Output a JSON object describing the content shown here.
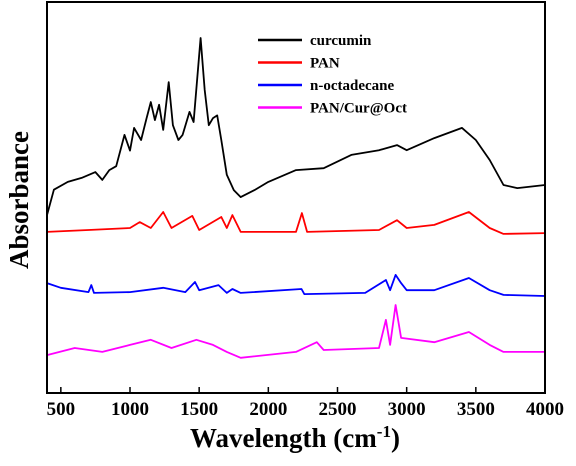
{
  "chart_data": {
    "type": "line",
    "xlabel": [
      "Wavelength (cm",
      "-1",
      ")"
    ],
    "ylabel": "Absorbance",
    "xlim": [
      400,
      4000
    ],
    "ylim": [
      0,
      100
    ],
    "xticks": [
      500,
      1000,
      1500,
      2000,
      2500,
      3000,
      3500,
      4000
    ],
    "series": [
      {
        "name": "curcumin",
        "color": "#000000",
        "x": [
          400,
          450,
          550,
          650,
          750,
          800,
          850,
          900,
          960,
          1000,
          1030,
          1080,
          1120,
          1150,
          1180,
          1210,
          1240,
          1280,
          1310,
          1350,
          1380,
          1430,
          1460,
          1510,
          1540,
          1570,
          1600,
          1630,
          1660,
          1700,
          1750,
          1800,
          1900,
          2000,
          2200,
          2400,
          2600,
          2800,
          2930,
          3000,
          3200,
          3400,
          3500,
          3600,
          3700,
          3800,
          4000
        ],
        "values": [
          45.5,
          52,
          54,
          55,
          56.5,
          54.5,
          57,
          58,
          66,
          62,
          67.8,
          64.7,
          70.3,
          74.4,
          69.8,
          73.7,
          67.3,
          79.5,
          68.5,
          64.7,
          66,
          71.9,
          69.3,
          90.8,
          77.5,
          68.5,
          70.3,
          71,
          64.7,
          55.8,
          51.9,
          50.1,
          51.9,
          54,
          57,
          57.5,
          60.9,
          62.1,
          63.4,
          62.1,
          65.2,
          67.8,
          64.7,
          59.6,
          53.2,
          52.4,
          53.2
        ]
      },
      {
        "name": "PAN",
        "color": "#ff0000",
        "x": [
          400,
          700,
          1000,
          1070,
          1150,
          1240,
          1300,
          1450,
          1500,
          1660,
          1700,
          1740,
          1800,
          2200,
          2243,
          2280,
          2800,
          2930,
          3000,
          3200,
          3450,
          3600,
          3700,
          4000
        ],
        "values": [
          41.2,
          41.7,
          42.2,
          43.7,
          42.2,
          46.3,
          42.2,
          45.3,
          41.7,
          45,
          42.2,
          45.5,
          41.2,
          41.2,
          46,
          41.2,
          41.7,
          44.2,
          42.2,
          43,
          46.3,
          42.2,
          40.7,
          40.9
        ]
      },
      {
        "name": "n-octadecane",
        "color": "#0000ff",
        "x": [
          400,
          500,
          700,
          720,
          740,
          1000,
          1240,
          1400,
          1470,
          1500,
          1640,
          1700,
          1740,
          1800,
          2240,
          2260,
          2700,
          2850,
          2880,
          2920,
          2960,
          3000,
          3200,
          3450,
          3600,
          3700,
          4000
        ],
        "values": [
          28.1,
          26.9,
          25.8,
          27.6,
          25.6,
          25.8,
          26.9,
          25.8,
          28.4,
          26.3,
          27.6,
          25.6,
          26.6,
          25.6,
          26.6,
          25.3,
          25.6,
          28.9,
          26.3,
          30.2,
          28.1,
          26.3,
          26.3,
          29.4,
          26.3,
          25.1,
          24.8
        ]
      },
      {
        "name": "PAN/Cur@Oct",
        "color": "#ff00ff",
        "x": [
          400,
          600,
          800,
          1000,
          1150,
          1300,
          1480,
          1600,
          1700,
          1800,
          2200,
          2350,
          2400,
          2800,
          2850,
          2880,
          2920,
          2960,
          3200,
          3450,
          3600,
          3700,
          4000
        ],
        "values": [
          9.7,
          11.5,
          10.5,
          12.3,
          13.6,
          11.5,
          13.6,
          12.3,
          10.5,
          9,
          10.5,
          13,
          11,
          11.5,
          18.7,
          12.3,
          22.5,
          14.1,
          13,
          15.6,
          12.3,
          10.5,
          10.5
        ]
      }
    ]
  }
}
